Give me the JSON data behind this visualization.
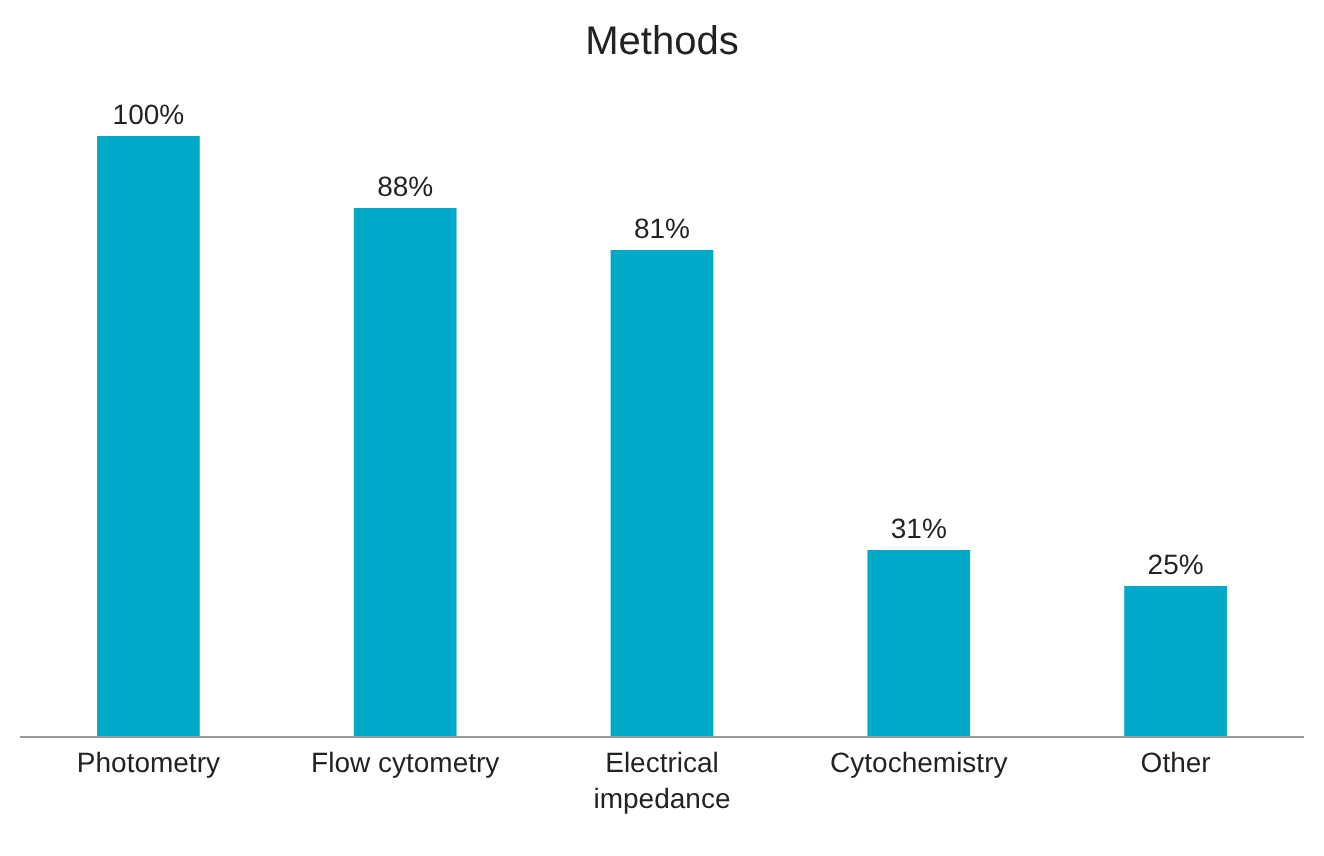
{
  "chart_data": {
    "type": "bar",
    "title": "Methods",
    "categories": [
      "Photometry",
      "Flow cytometry",
      "Electrical impedance",
      "Cytochemistry",
      "Other"
    ],
    "values": [
      100,
      88,
      81,
      31,
      25
    ],
    "value_labels": [
      "100%",
      "88%",
      "81%",
      "31%",
      "25%"
    ],
    "color": "#00a9c8"
  }
}
